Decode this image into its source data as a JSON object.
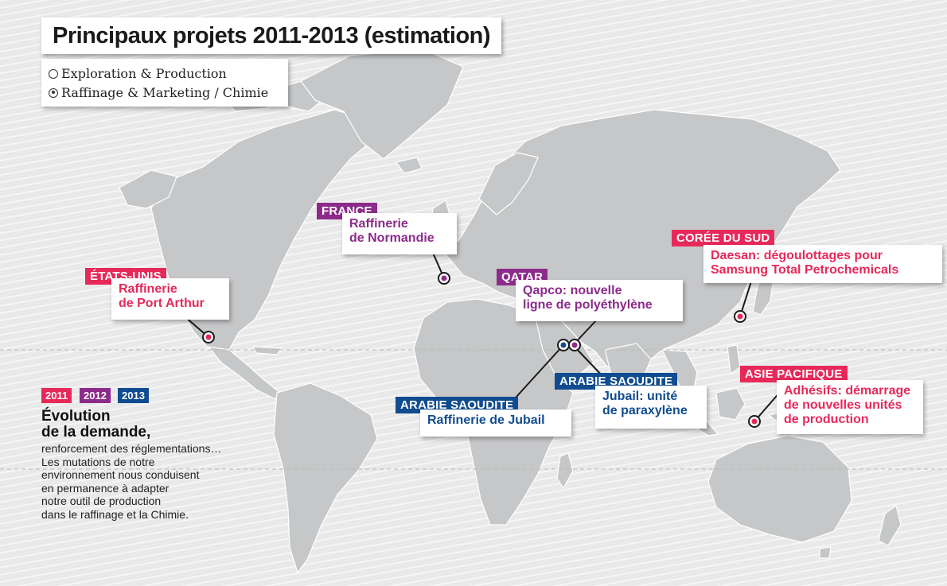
{
  "title": "Principaux projets 2011-2013 (estimation)",
  "legend": {
    "items": [
      {
        "label": "Exploration & Production",
        "icon": "hollow-circle-icon"
      },
      {
        "label": "Raffinage & Marketing / Chimie",
        "icon": "dotted-circle-icon"
      }
    ]
  },
  "colors": {
    "y2011": "#e7295a",
    "y2012": "#8c2b8b",
    "y2013": "#104c8f",
    "land": "#c6c7c8",
    "ocean": "#e9e9ea"
  },
  "years": [
    "2011",
    "2012",
    "2013"
  ],
  "evolution": {
    "title_line1": "Évolution",
    "title_line2": "de la demande,",
    "lines": [
      "renforcement des réglementations…",
      "Les mutations de notre",
      "environnement nous conduisent",
      "en permanence à adapter",
      "notre outil de production",
      "dans le raffinage et la Chimie."
    ]
  },
  "projects": [
    {
      "country": "ÉTATS-UNIS",
      "lines": [
        "Raffinerie",
        "de Port Arthur"
      ],
      "year": "2011"
    },
    {
      "country": "FRANCE",
      "lines": [
        "Raffinerie",
        "de Normandie"
      ],
      "year": "2012"
    },
    {
      "country": "QATAR",
      "lines": [
        "Qapco: nouvelle",
        "ligne de polyéthylène"
      ],
      "year": "2012"
    },
    {
      "country": "ARABIE SAOUDITE",
      "lines": [
        "Raffinerie de Jubail"
      ],
      "year": "2013"
    },
    {
      "country": "ARABIE SAOUDITE",
      "lines": [
        "Jubail: unité",
        "de paraxylène"
      ],
      "year": "2013"
    },
    {
      "country": "CORÉE DU SUD",
      "lines": [
        "Daesan: dégoulottages pour",
        "Samsung Total Petrochemicals"
      ],
      "year": "2011"
    },
    {
      "country": "ASIE PACIFIQUE",
      "lines": [
        "Adhésifs: démarrage",
        "de nouvelles unités",
        "de production"
      ],
      "year": "2011"
    }
  ]
}
